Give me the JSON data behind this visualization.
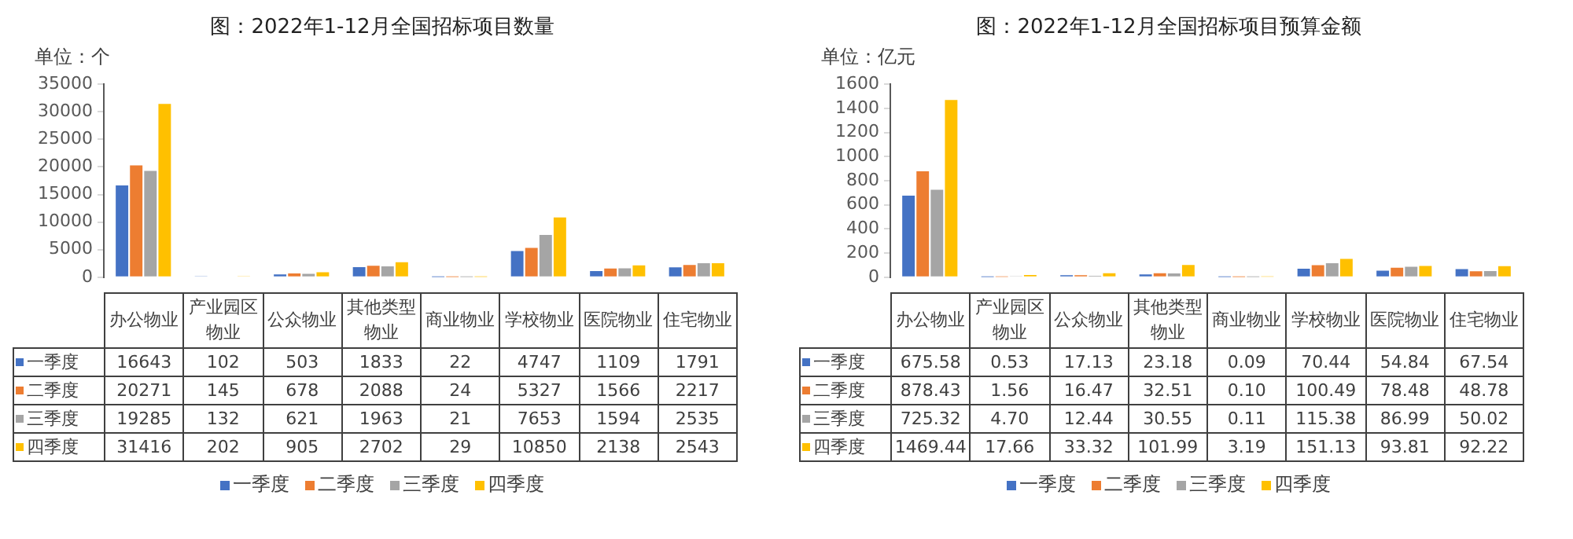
{
  "chart_data": [
    {
      "type": "bar",
      "title": "图：2022年1-12月全国招标项目数量",
      "ylabel": "单位：个",
      "categories": [
        "办公物业",
        "产业园区物业",
        "公众物业",
        "其他类型物业",
        "商业物业",
        "学校物业",
        "医院物业",
        "住宅物业"
      ],
      "series": [
        {
          "name": "一季度",
          "color": "#4472c4",
          "values": [
            16643,
            102,
            503,
            1833,
            22,
            4747,
            1109,
            1791
          ]
        },
        {
          "name": "二季度",
          "color": "#ed7d31",
          "values": [
            20271,
            145,
            678,
            2088,
            24,
            5327,
            1566,
            2217
          ]
        },
        {
          "name": "三季度",
          "color": "#a5a5a5",
          "values": [
            19285,
            132,
            621,
            1963,
            21,
            7653,
            1594,
            2535
          ]
        },
        {
          "name": "四季度",
          "color": "#ffc000",
          "values": [
            31416,
            202,
            905,
            2702,
            29,
            10850,
            2138,
            2543
          ]
        }
      ],
      "ylim": [
        0,
        35000
      ],
      "yticks": [
        0,
        5000,
        10000,
        15000,
        20000,
        25000,
        30000,
        35000
      ],
      "data_labels": true,
      "legend": "bottom"
    },
    {
      "type": "bar",
      "title": "图：2022年1-12月全国招标项目预算金额",
      "ylabel": "单位：亿元",
      "categories": [
        "办公物业",
        "产业园区物业",
        "公众物业",
        "其他类型物业",
        "商业物业",
        "学校物业",
        "医院物业",
        "住宅物业"
      ],
      "series": [
        {
          "name": "一季度",
          "color": "#4472c4",
          "values": [
            675.58,
            0.53,
            17.13,
            23.18,
            0.09,
            70.44,
            54.84,
            67.54
          ],
          "value_labels": [
            "675.58",
            "0.53",
            "17.13",
            "23.18",
            "0.09",
            "70.44",
            "54.84",
            "67.54"
          ]
        },
        {
          "name": "二季度",
          "color": "#ed7d31",
          "values": [
            878.43,
            1.56,
            16.47,
            32.51,
            0.1,
            100.49,
            78.48,
            48.78
          ],
          "value_labels": [
            "878.43",
            "1.56",
            "16.47",
            "32.51",
            "0.10",
            "100.49",
            "78.48",
            "48.78"
          ]
        },
        {
          "name": "三季度",
          "color": "#a5a5a5",
          "values": [
            725.32,
            4.7,
            12.44,
            30.55,
            0.11,
            115.38,
            86.99,
            50.02
          ],
          "value_labels": [
            "725.32",
            "4.70",
            "12.44",
            "30.55",
            "0.11",
            "115.38",
            "86.99",
            "50.02"
          ]
        },
        {
          "name": "四季度",
          "color": "#ffc000",
          "values": [
            1469.44,
            17.66,
            33.32,
            101.99,
            3.19,
            151.13,
            93.81,
            92.22
          ],
          "value_labels": [
            "1469.44",
            "17.66",
            "33.32",
            "101.99",
            "3.19",
            "151.13",
            "93.81",
            "92.22"
          ]
        }
      ],
      "ylim": [
        0,
        1600
      ],
      "yticks": [
        0,
        200,
        400,
        600,
        800,
        1000,
        1200,
        1400,
        1600
      ],
      "legend": "bottom"
    }
  ]
}
